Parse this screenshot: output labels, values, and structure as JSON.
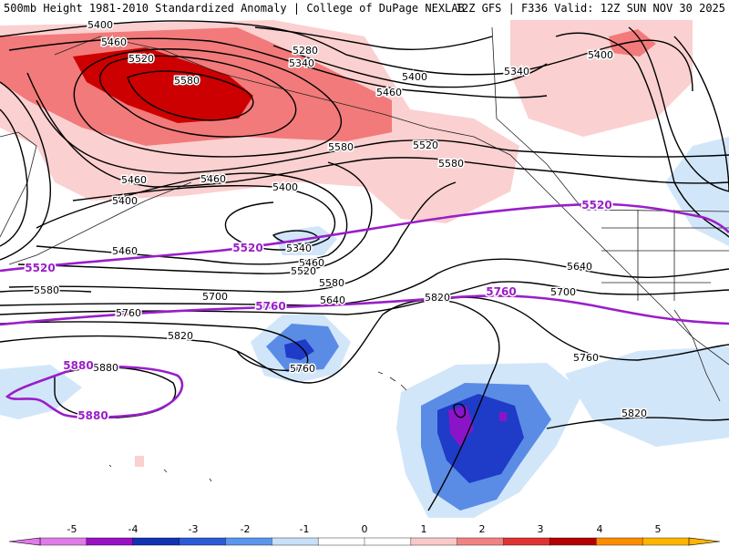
{
  "header": {
    "left": "500mb Height 1981-2010 Standardized Anomaly | College of DuPage NEXLAB",
    "right": "12Z GFS | F336 Valid: 12Z SUN NOV 30 2025"
  },
  "colors": {
    "pos1": "#fbd0d0",
    "pos2": "#f27a7a",
    "pos3": "#cc0000",
    "neg1": "#d2e6fa",
    "neg2": "#5a8ce6",
    "neg3": "#1e3cc8",
    "neg4": "#8c14c8",
    "purple": "#9a1ec8",
    "land": "#222222"
  },
  "contour_labels": {
    "black": [
      "5400",
      "5460",
      "5280",
      "5340",
      "5520",
      "5580",
      "5400",
      "5460",
      "5520",
      "5580",
      "5460",
      "5340",
      "5400",
      "5400",
      "5460",
      "5340",
      "5460",
      "5520",
      "5580",
      "5640",
      "5700",
      "5580",
      "5760",
      "5820",
      "5640",
      "5700",
      "5820",
      "5760",
      "5880",
      "5760",
      "5820",
      "5400",
      "5580",
      "5460"
    ],
    "purple": [
      "5520",
      "5520",
      "5520",
      "5760",
      "5760",
      "5880",
      "5880"
    ]
  },
  "colorbar": {
    "ticks": [
      "-5",
      "-4",
      "-3",
      "-2",
      "-1",
      "0",
      "1",
      "2",
      "3",
      "4",
      "5"
    ],
    "colors": [
      "#e07ae8",
      "#9a10c4",
      "#1232b4",
      "#2c5ad8",
      "#5a96f0",
      "#c8e0f8",
      "#ffffff",
      "#ffffff",
      "#fbc8c8",
      "#f28282",
      "#e03232",
      "#b40000",
      "#ff8c00",
      "#ffb400"
    ]
  }
}
